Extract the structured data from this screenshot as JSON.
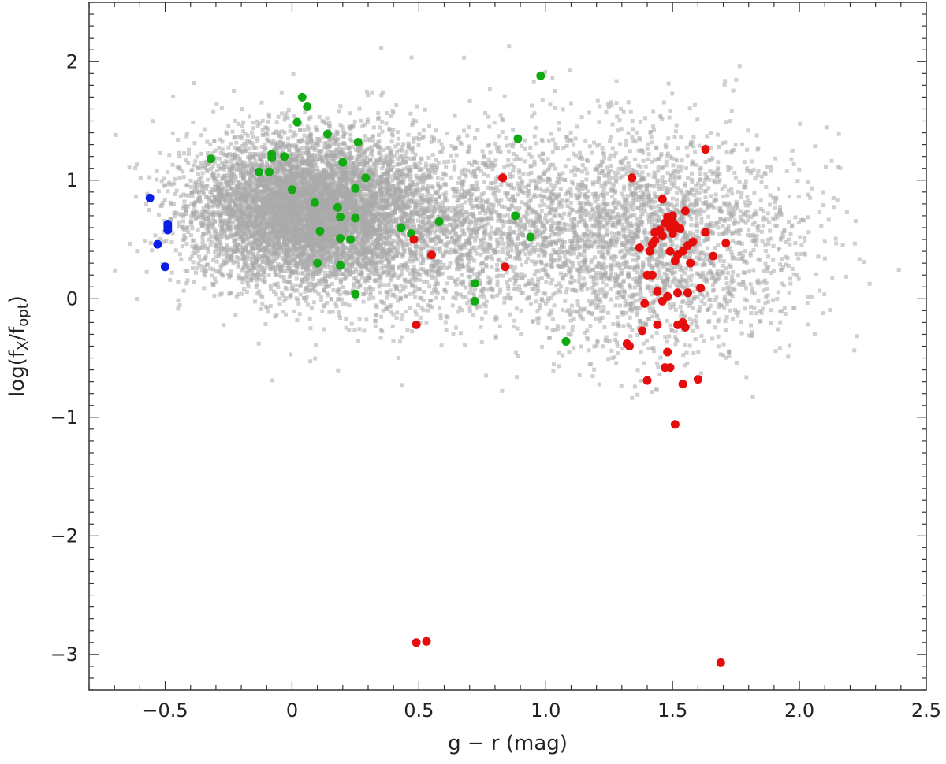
{
  "chart_data": {
    "type": "scatter",
    "title": "",
    "xlabel": "g − r (mag)",
    "ylabel_parts": {
      "prefix": "log(f",
      "sub1": "X",
      "mid": "/f",
      "sub2": "opt",
      "suffix": ")"
    },
    "xlim": [
      -0.8,
      2.5
    ],
    "ylim": [
      -3.3,
      2.5
    ],
    "x_ticks": [
      {
        "value": -0.5,
        "label": "−0.5"
      },
      {
        "value": 0,
        "label": "0"
      },
      {
        "value": 0.5,
        "label": "0.5"
      },
      {
        "value": 1.0,
        "label": "1.0"
      },
      {
        "value": 1.5,
        "label": "1.5"
      },
      {
        "value": 2.0,
        "label": "2.0"
      },
      {
        "value": 2.5,
        "label": "2.5"
      }
    ],
    "y_ticks": [
      {
        "value": 2,
        "label": "2"
      },
      {
        "value": 1,
        "label": "1"
      },
      {
        "value": 0,
        "label": "0"
      },
      {
        "value": -1,
        "label": "−1"
      },
      {
        "value": -2,
        "label": "−2"
      },
      {
        "value": -3,
        "label": "−3"
      }
    ],
    "grid": false,
    "legend": "none",
    "background_population": {
      "color": "#a9a9a9",
      "description_count": 11000,
      "clusters": [
        {
          "cx": 0.05,
          "cy": 0.75,
          "sx": 0.22,
          "sy": 0.3,
          "weight": 0.55
        },
        {
          "cx": 0.55,
          "cy": 0.6,
          "sx": 0.35,
          "sy": 0.4,
          "weight": 0.22
        },
        {
          "cx": 1.4,
          "cy": 0.5,
          "sx": 0.3,
          "sy": 0.45,
          "weight": 0.23
        }
      ]
    },
    "series": [
      {
        "color": "#0a1ee6",
        "points": [
          [
            -0.56,
            0.85
          ],
          [
            -0.49,
            0.63
          ],
          [
            -0.49,
            0.61
          ],
          [
            -0.49,
            0.58
          ],
          [
            -0.53,
            0.46
          ],
          [
            -0.5,
            0.27
          ]
        ]
      },
      {
        "color": "#12aa12",
        "points": [
          [
            -0.32,
            1.18
          ],
          [
            -0.13,
            1.07
          ],
          [
            -0.09,
            1.07
          ],
          [
            -0.08,
            1.22
          ],
          [
            -0.08,
            1.19
          ],
          [
            -0.03,
            1.2
          ],
          [
            0.0,
            0.92
          ],
          [
            0.02,
            1.49
          ],
          [
            0.04,
            1.7
          ],
          [
            0.06,
            1.62
          ],
          [
            0.09,
            0.81
          ],
          [
            0.1,
            0.3
          ],
          [
            0.11,
            0.57
          ],
          [
            0.14,
            1.39
          ],
          [
            0.18,
            0.77
          ],
          [
            0.19,
            0.69
          ],
          [
            0.19,
            0.51
          ],
          [
            0.19,
            0.28
          ],
          [
            0.2,
            1.15
          ],
          [
            0.23,
            0.5
          ],
          [
            0.25,
            0.68
          ],
          [
            0.25,
            0.93
          ],
          [
            0.26,
            1.32
          ],
          [
            0.29,
            1.02
          ],
          [
            0.25,
            0.04
          ],
          [
            0.43,
            0.6
          ],
          [
            0.47,
            0.55
          ],
          [
            0.58,
            0.65
          ],
          [
            0.72,
            0.13
          ],
          [
            0.72,
            -0.02
          ],
          [
            0.88,
            0.7
          ],
          [
            0.89,
            1.35
          ],
          [
            0.94,
            0.52
          ],
          [
            0.98,
            1.88
          ],
          [
            1.08,
            -0.36
          ]
        ]
      },
      {
        "color": "#e60d0d",
        "points": [
          [
            0.48,
            0.5
          ],
          [
            0.49,
            -0.22
          ],
          [
            0.55,
            0.37
          ],
          [
            0.83,
            1.02
          ],
          [
            0.84,
            0.27
          ],
          [
            0.49,
            -2.9
          ],
          [
            0.53,
            -2.89
          ],
          [
            1.34,
            1.02
          ],
          [
            1.37,
            0.43
          ],
          [
            1.39,
            -0.04
          ],
          [
            1.38,
            -0.27
          ],
          [
            1.32,
            -0.38
          ],
          [
            1.33,
            -0.4
          ],
          [
            1.4,
            -0.69
          ],
          [
            1.4,
            0.2
          ],
          [
            1.41,
            0.4
          ],
          [
            1.42,
            0.2
          ],
          [
            1.42,
            0.46
          ],
          [
            1.43,
            0.49
          ],
          [
            1.43,
            0.56
          ],
          [
            1.44,
            -0.22
          ],
          [
            1.44,
            0.06
          ],
          [
            1.45,
            0.58
          ],
          [
            1.46,
            0.53
          ],
          [
            1.46,
            0.84
          ],
          [
            1.46,
            -0.02
          ],
          [
            1.47,
            0.64
          ],
          [
            1.47,
            -0.58
          ],
          [
            1.48,
            0.69
          ],
          [
            1.48,
            -0.45
          ],
          [
            1.48,
            0.02
          ],
          [
            1.49,
            0.6
          ],
          [
            1.49,
            0.4
          ],
          [
            1.49,
            -0.58
          ],
          [
            1.5,
            0.55
          ],
          [
            1.5,
            0.58
          ],
          [
            1.5,
            0.7
          ],
          [
            1.5,
            0.65
          ],
          [
            1.51,
            0.32
          ],
          [
            1.51,
            0.62
          ],
          [
            1.52,
            0.05
          ],
          [
            1.52,
            -0.22
          ],
          [
            1.52,
            0.37
          ],
          [
            1.53,
            0.59
          ],
          [
            1.54,
            -0.2
          ],
          [
            1.54,
            0.4
          ],
          [
            1.55,
            -0.24
          ],
          [
            1.55,
            0.74
          ],
          [
            1.56,
            0.05
          ],
          [
            1.56,
            0.45
          ],
          [
            1.57,
            0.3
          ],
          [
            1.58,
            0.48
          ],
          [
            1.54,
            -0.72
          ],
          [
            1.51,
            -1.06
          ],
          [
            1.6,
            -0.68
          ],
          [
            1.61,
            0.09
          ],
          [
            1.63,
            1.26
          ],
          [
            1.63,
            0.56
          ],
          [
            1.66,
            0.36
          ],
          [
            1.71,
            0.47
          ],
          [
            1.69,
            -3.07
          ]
        ]
      }
    ]
  }
}
